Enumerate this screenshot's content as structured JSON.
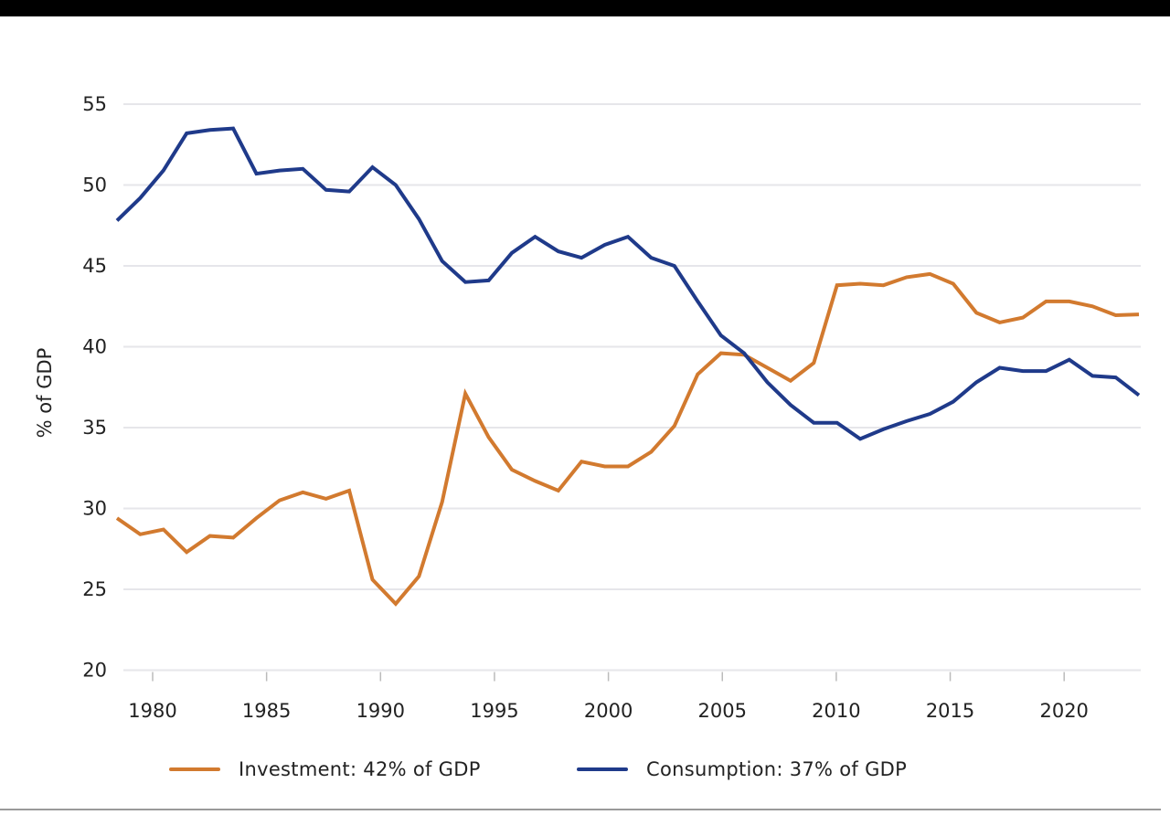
{
  "chart_data": {
    "type": "line",
    "title": "",
    "xlabel": "",
    "ylabel": "% of GDP",
    "ylim": [
      20,
      55
    ],
    "yticks": [
      20,
      25,
      30,
      35,
      40,
      45,
      50,
      55
    ],
    "xticks": [
      1980,
      1985,
      1990,
      1995,
      2000,
      2005,
      2010,
      2015,
      2020
    ],
    "grid": "horizontal",
    "legend_position": "bottom",
    "x": [
      1979,
      1980,
      1981,
      1982,
      1983,
      1984,
      1985,
      1986,
      1987,
      1988,
      1989,
      1990,
      1991,
      1992,
      1993,
      1994,
      1995,
      1996,
      1997,
      1998,
      1999,
      2000,
      2001,
      2002,
      2003,
      2004,
      2005,
      2006,
      2007,
      2008,
      2009,
      2010,
      2011,
      2012,
      2013,
      2014,
      2015,
      2016,
      2017,
      2018,
      2019,
      2020,
      2021,
      2022,
      2023
    ],
    "series": [
      {
        "name": "Investment: 42% of GDP",
        "color": "#d27a2f",
        "values": [
          29.4,
          28.4,
          28.7,
          27.3,
          28.3,
          28.2,
          29.4,
          30.5,
          31.0,
          30.6,
          31.1,
          25.6,
          24.1,
          25.8,
          30.4,
          37.1,
          34.4,
          32.4,
          31.7,
          31.1,
          32.9,
          32.6,
          32.6,
          33.5,
          35.1,
          38.3,
          39.6,
          39.5,
          38.7,
          37.9,
          39.0,
          43.8,
          43.9,
          43.8,
          44.3,
          44.5,
          43.9,
          42.1,
          41.5,
          41.8,
          42.8,
          42.8,
          42.5,
          41.95,
          42.0
        ]
      },
      {
        "name": "Consumption: 37% of GDP",
        "color": "#1f3a8a",
        "values": [
          47.8,
          49.2,
          50.9,
          53.2,
          53.4,
          53.5,
          50.7,
          50.9,
          51.0,
          49.7,
          49.6,
          51.1,
          50.0,
          47.9,
          45.3,
          44.0,
          44.1,
          45.8,
          46.8,
          45.9,
          45.5,
          46.3,
          46.8,
          45.5,
          45.0,
          42.8,
          40.7,
          39.6,
          37.8,
          36.4,
          35.3,
          35.3,
          34.3,
          34.9,
          35.4,
          35.85,
          36.6,
          37.8,
          38.7,
          38.5,
          38.5,
          39.2,
          38.2,
          38.1,
          37.0
        ]
      }
    ]
  }
}
